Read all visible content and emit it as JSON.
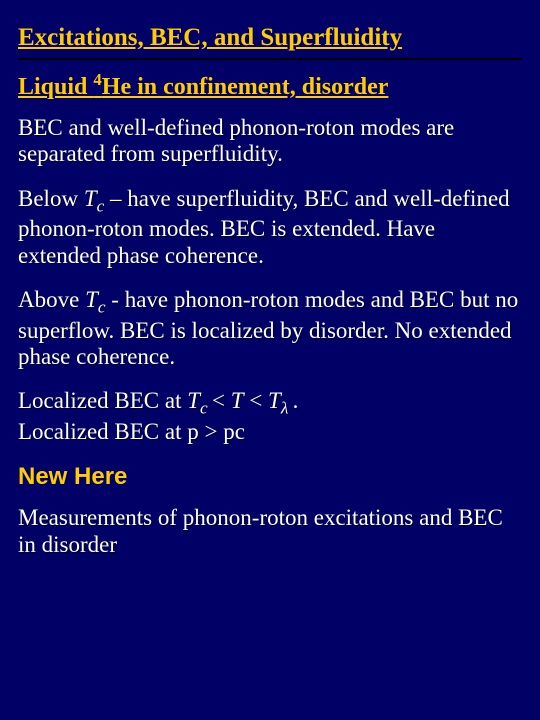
{
  "colors": {
    "background": "#000066",
    "accent": "#ffcc00",
    "body_text": "#ffffff",
    "divider": "#000000"
  },
  "typography": {
    "title_fontsize_pt": 19,
    "subtitle_fontsize_pt": 18,
    "body_fontsize_pt": 17,
    "newhere_fontsize_pt": 18,
    "font_family_serif": "Times New Roman",
    "font_family_sans": "Arial"
  },
  "title": "Excitations, BEC, and Superfluidity",
  "subtitle_parts": {
    "t1": "Liquid ",
    "sup": "4",
    "t2": "He in confinement, disorder"
  },
  "p1": "BEC and  well-defined phonon-roton modes are separated from superfluidity.",
  "p2": {
    "t1": "Below ",
    "sym1": "T",
    "sub1": "c",
    "t2": " – have superfluidity, BEC and well-defined phonon-roton modes. BEC is extended. Have extended phase coherence."
  },
  "p3": {
    "t1": "Above ",
    "sym1": "T",
    "sub1": "c",
    "t2": " - have phonon-roton modes and BEC but no superflow. BEC is localized by disorder. No extended phase coherence."
  },
  "p4": {
    "t1": "Localized BEC at  ",
    "sym1": "T",
    "sub1": "c ",
    "t2": "< ",
    "sym2": "T",
    "t3": " < ",
    "sym3": "T",
    "sub3": "λ ",
    "t4": ".",
    "br": "",
    "t5": "Localized BEC at  p > pc"
  },
  "new_here": "New Here",
  "p5": "Measurements of phonon-roton excitations and BEC in disorder"
}
